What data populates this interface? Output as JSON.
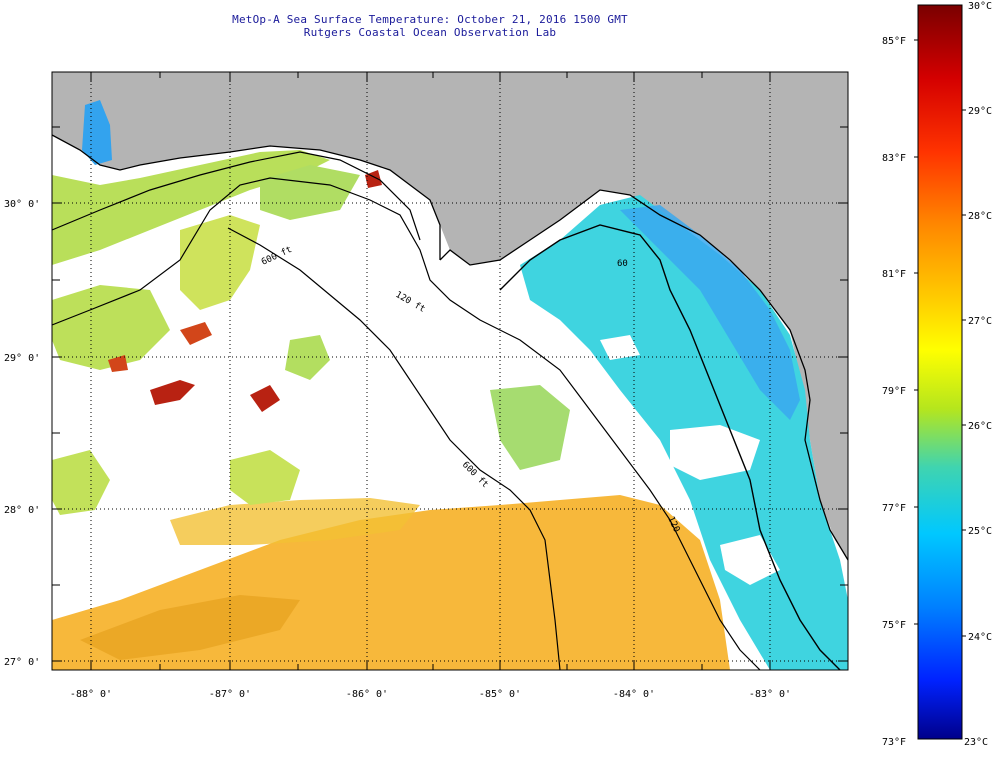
{
  "header": {
    "title": "MetOp-A Sea Surface Temperature:  October 21, 2016 1500 GMT",
    "subtitle": "Rutgers Coastal Ocean Observation Lab"
  },
  "map": {
    "lat_labels": [
      "30° 0'",
      "29° 0'",
      "28° 0'",
      "27° 0'"
    ],
    "lon_labels": [
      "-88° 0'",
      "-87° 0'",
      "-86° 0'",
      "-85° 0'",
      "-84° 0'",
      "-83° 0'"
    ],
    "isobath_labels": [
      "600 ft",
      "120 ft",
      "600 ft",
      "60",
      "120"
    ],
    "colors": {
      "land": "#b4b4b4",
      "cloud": "#ffffff",
      "warm": "#f6b22a",
      "mid": "#b9df5a",
      "cool": "#3fd4e0",
      "cold": "#33a3ee",
      "hot": "#b82212"
    }
  },
  "colorbar": {
    "celsius_labels": [
      "30°C",
      "29°C",
      "28°C",
      "27°C",
      "26°C",
      "25°C",
      "24°C",
      "23°C"
    ],
    "fahrenheit_labels": [
      "85°F",
      "83°F",
      "81°F",
      "79°F",
      "77°F",
      "75°F",
      "73°F"
    ],
    "gradient": [
      "#7a0000",
      "#d40000",
      "#ff3300",
      "#ff8800",
      "#ffcc00",
      "#ffff00",
      "#b5e61d",
      "#3fd4b0",
      "#00c8ff",
      "#0080ff",
      "#0022ff",
      "#00008a"
    ]
  }
}
